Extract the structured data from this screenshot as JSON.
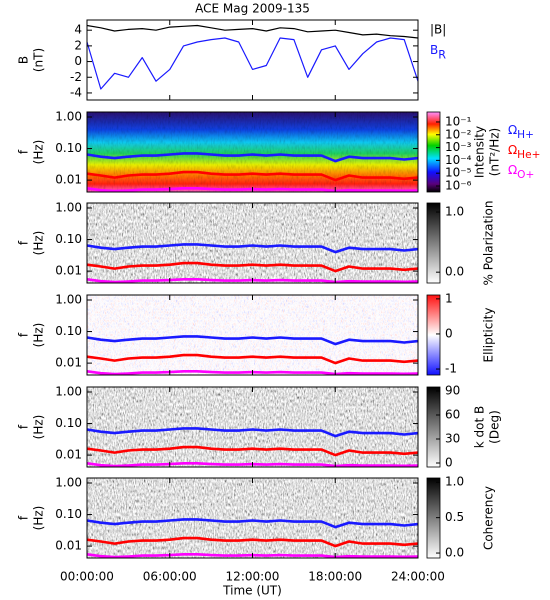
{
  "chart_data": [
    {
      "type": "line",
      "title": "ACE Mag 2009-135",
      "ylabel": [
        "B",
        "(nT)"
      ],
      "x": [
        0,
        1,
        2,
        3,
        4,
        5,
        6,
        7,
        8,
        9,
        10,
        11,
        12,
        13,
        14,
        15,
        16,
        17,
        18,
        19,
        20,
        21,
        22,
        23,
        24
      ],
      "xlim": [
        0,
        24
      ],
      "ylim": [
        -4.9,
        5.3
      ],
      "yticks": [
        -4,
        -2,
        0,
        2,
        4
      ],
      "series": [
        {
          "name": "|B|",
          "color": "#000000",
          "values": [
            4.6,
            4.3,
            3.9,
            4.1,
            4.2,
            4.0,
            4.4,
            4.5,
            4.6,
            4.3,
            4.0,
            4.1,
            4.2,
            3.9,
            4.3,
            4.2,
            3.8,
            3.9,
            4.0,
            3.7,
            3.4,
            3.5,
            3.3,
            3.2,
            3.0
          ]
        },
        {
          "name": "B",
          "sub": "R",
          "color": "#1a1aff",
          "values": [
            2.5,
            -3.5,
            -1.5,
            -2.0,
            0.5,
            -2.5,
            -1.0,
            2.0,
            2.5,
            2.8,
            3.0,
            2.5,
            -1.0,
            -0.5,
            3.0,
            2.8,
            -2.0,
            1.5,
            2.0,
            -1.0,
            1.0,
            2.5,
            3.0,
            2.8,
            -2.5
          ]
        }
      ]
    },
    {
      "type": "spectrogram",
      "ylabel": [
        "f",
        "(Hz)"
      ],
      "yscale": "log",
      "xlim": [
        0,
        24
      ],
      "ylim": [
        0.0042,
        1.44
      ],
      "yticks": [
        {
          "value": 1,
          "label": "1.00"
        },
        {
          "value": 0.1,
          "label": "0.10"
        },
        {
          "value": 0.01,
          "label": "0.01"
        }
      ],
      "colorbar": {
        "label": [
          "Intensity",
          "(nT²/Hz)"
        ],
        "scale": "log",
        "colormap": "rainbow",
        "lim": [
          3.4e-07,
          0.6
        ],
        "ticks": [
          {
            "value": 0.1,
            "label": "10⁻¹"
          },
          {
            "value": 0.01,
            "label": "10⁻²"
          },
          {
            "value": 0.001,
            "label": "10⁻³"
          },
          {
            "value": 0.0001,
            "label": "10⁻⁴"
          },
          {
            "value": 1e-05,
            "label": "10⁻⁵"
          },
          {
            "value": 1e-06,
            "label": "10⁻⁶"
          }
        ]
      },
      "x": [
        0,
        1,
        2,
        3,
        4,
        5,
        6,
        7,
        8,
        9,
        10,
        11,
        12,
        13,
        14,
        15,
        16,
        17,
        18,
        19,
        20,
        21,
        22,
        23,
        24
      ],
      "series": [
        {
          "name": "Ω",
          "sub": "H+",
          "color": "#1a1aff",
          "values": [
            0.065,
            0.055,
            0.05,
            0.055,
            0.06,
            0.06,
            0.065,
            0.07,
            0.07,
            0.065,
            0.06,
            0.06,
            0.065,
            0.06,
            0.065,
            0.06,
            0.06,
            0.06,
            0.04,
            0.055,
            0.05,
            0.05,
            0.05,
            0.045,
            0.05
          ]
        },
        {
          "name": "Ω",
          "sub": "He+",
          "color": "#ff0000",
          "values": [
            0.016,
            0.014,
            0.012,
            0.014,
            0.015,
            0.015,
            0.016,
            0.018,
            0.018,
            0.016,
            0.015,
            0.015,
            0.016,
            0.015,
            0.016,
            0.015,
            0.015,
            0.015,
            0.01,
            0.014,
            0.012,
            0.012,
            0.012,
            0.011,
            0.012
          ]
        },
        {
          "name": "Ω",
          "sub": "O+",
          "color": "#ff00ff",
          "values": [
            0.0055,
            0.0048,
            0.0045,
            0.0047,
            0.005,
            0.005,
            0.0052,
            0.0055,
            0.0055,
            0.0052,
            0.005,
            0.005,
            0.0052,
            0.005,
            0.0052,
            0.005,
            0.005,
            0.005,
            0.0045,
            0.0048,
            0.0047,
            0.0047,
            0.0047,
            0.0046,
            0.0047
          ]
        }
      ]
    },
    {
      "type": "spectrogram",
      "ylabel": [
        "f",
        "(Hz)"
      ],
      "yscale": "log",
      "xlim": [
        0,
        24
      ],
      "ylim": [
        0.0042,
        1.44
      ],
      "yticks": [
        {
          "value": 1,
          "label": "1.00"
        },
        {
          "value": 0.1,
          "label": "0.10"
        },
        {
          "value": 0.01,
          "label": "0.01"
        }
      ],
      "colorbar": {
        "label": [
          "% Polarization"
        ],
        "scale": "linear",
        "colormap": "gray",
        "lim": [
          -0.18,
          1.15
        ],
        "ticks": [
          {
            "value": 1,
            "label": "1.0"
          },
          {
            "value": 0,
            "label": "0.0"
          }
        ]
      }
    },
    {
      "type": "spectrogram",
      "ylabel": [
        "f",
        "(Hz)"
      ],
      "yscale": "log",
      "xlim": [
        0,
        24
      ],
      "ylim": [
        0.0042,
        1.44
      ],
      "yticks": [
        {
          "value": 1,
          "label": "1.00"
        },
        {
          "value": 0.1,
          "label": "0.10"
        },
        {
          "value": 0.01,
          "label": "0.01"
        }
      ],
      "colorbar": {
        "label": [
          "Ellipticity"
        ],
        "scale": "linear",
        "colormap": "bwr",
        "lim": [
          -1.17,
          1.11
        ],
        "ticks": [
          1,
          0,
          -1
        ]
      }
    },
    {
      "type": "spectrogram",
      "ylabel": [
        "f",
        "(Hz)"
      ],
      "yscale": "log",
      "xlim": [
        0,
        24
      ],
      "ylim": [
        0.0042,
        1.44
      ],
      "yticks": [
        {
          "value": 1,
          "label": "1.00"
        },
        {
          "value": 0.1,
          "label": "0.10"
        },
        {
          "value": 0.01,
          "label": "0.01"
        }
      ],
      "colorbar": {
        "label": [
          "k dot B",
          "(Deg)"
        ],
        "scale": "linear",
        "colormap": "gray",
        "lim": [
          -5,
          95
        ],
        "ticks": [
          90,
          60,
          30,
          0
        ]
      }
    },
    {
      "type": "spectrogram",
      "ylabel": [
        "f",
        "(Hz)"
      ],
      "yscale": "log",
      "xlim": [
        0,
        24
      ],
      "ylim": [
        0.0042,
        1.44
      ],
      "yticks": [
        {
          "value": 1,
          "label": "1.00"
        },
        {
          "value": 0.1,
          "label": "0.10"
        },
        {
          "value": 0.01,
          "label": "0.01"
        }
      ],
      "colorbar": {
        "label": [
          "Coherency"
        ],
        "scale": "linear",
        "colormap": "gray",
        "lim": [
          -0.07,
          1.06
        ],
        "ticks": [
          {
            "value": 1,
            "label": "1.0"
          },
          {
            "value": 0.5,
            "label": "0.5"
          },
          {
            "value": 0,
            "label": "0.0"
          }
        ]
      },
      "xlabel": "Time (UT)",
      "xticks": [
        {
          "value": 0,
          "label": "00:00:00"
        },
        {
          "value": 6,
          "label": "06:00:00"
        },
        {
          "value": 12,
          "label": "12:00:00"
        },
        {
          "value": 18,
          "label": "18:00:00"
        },
        {
          "value": 24,
          "label": "24:00:00"
        }
      ]
    }
  ]
}
